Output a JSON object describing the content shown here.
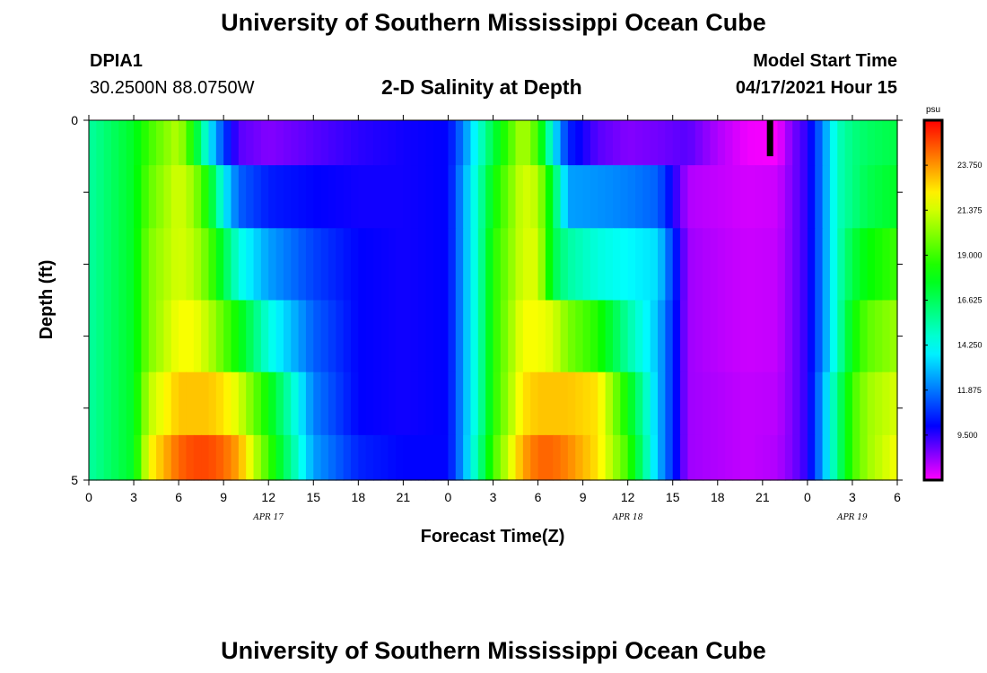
{
  "page": {
    "title_top": "University of Southern Mississippi Ocean Cube",
    "title_bottom": "University of Southern Mississippi Ocean Cube",
    "station_id": "DPIA1",
    "station_coords": "30.2500N  88.0750W",
    "subtitle": "2-D Salinity at Depth",
    "model_start_label": "Model Start Time",
    "model_start_value": "04/17/2021 Hour 15"
  },
  "chart_data": {
    "type": "heatmap",
    "title": "2-D Salinity at Depth",
    "xlabel": "Forecast Time(Z)",
    "ylabel": "Depth (ft)",
    "x_tick_labels": [
      "0",
      "3",
      "6",
      "9",
      "12",
      "15",
      "18",
      "21",
      "0",
      "3",
      "6",
      "9",
      "12",
      "15",
      "18",
      "21",
      "0",
      "3",
      "6"
    ],
    "date_labels": [
      {
        "text": "APR  17",
        "at_hour": 12
      },
      {
        "text": "APR  18",
        "at_hour": 36
      },
      {
        "text": "APR  19",
        "at_hour": 51
      }
    ],
    "xlim_hours": [
      0,
      54
    ],
    "y_tick_labels": [
      {
        "value": 0,
        "text": "0"
      },
      {
        "value": 5,
        "text": "5"
      }
    ],
    "ylim": [
      0,
      5
    ],
    "depth_bands": [
      0.25,
      1.0,
      2.0,
      3.0,
      4.0,
      4.75
    ],
    "now_marker_hour": 45.5,
    "colorbar": {
      "unit": "psu",
      "min": 7.125,
      "max": 26.125,
      "tick_values": [
        23.75,
        21.375,
        19.0,
        16.625,
        14.25,
        11.875,
        9.5
      ],
      "tick_labels": [
        "23.750",
        "21.375",
        "19.000",
        "16.625",
        "14.250",
        "11.875",
        "9.500"
      ]
    },
    "series": [
      {
        "depth_ft": 0.25,
        "hours": [
          0,
          3,
          4,
          6,
          7,
          8,
          9,
          10,
          12,
          15,
          18,
          21,
          24,
          25,
          26,
          27,
          29,
          30,
          31,
          32,
          34,
          36,
          38,
          40,
          42,
          44,
          46,
          47,
          48,
          49,
          50,
          51,
          52,
          54
        ],
        "values": [
          15.5,
          17.5,
          19,
          21,
          18,
          14,
          11,
          9,
          8.5,
          9,
          9.5,
          9.8,
          10,
          12,
          14.5,
          17,
          21,
          19,
          14,
          10.5,
          9,
          8.5,
          8.7,
          9,
          8,
          7.3,
          7.2,
          8.6,
          9.5,
          12,
          15,
          16,
          16.5,
          17
        ]
      },
      {
        "depth_ft": 1.0,
        "hours": [
          0,
          3,
          4,
          6,
          7,
          8,
          9,
          10,
          12,
          15,
          18,
          21,
          24,
          25,
          26,
          27,
          29,
          30,
          31,
          32,
          34,
          36,
          38,
          40,
          42,
          44,
          46,
          47,
          48,
          49,
          50,
          51,
          52,
          54
        ],
        "values": [
          15.5,
          17.5,
          19.5,
          21.5,
          20.5,
          18,
          14,
          11.5,
          10.4,
          10,
          9.8,
          9.8,
          10,
          12.5,
          15,
          18,
          21.5,
          21,
          17,
          12.5,
          12.3,
          12,
          11.5,
          8,
          7.8,
          7.6,
          7.7,
          8.6,
          9.5,
          12,
          15,
          16,
          16.8,
          17.5
        ]
      },
      {
        "depth_ft": 2.0,
        "hours": [
          0,
          3,
          4,
          6,
          7,
          8,
          9,
          10,
          12,
          15,
          18,
          21,
          24,
          25,
          26,
          27,
          29,
          30,
          31,
          32,
          34,
          36,
          38,
          40,
          42,
          44,
          46,
          47,
          48,
          49,
          50,
          51,
          52,
          54
        ],
        "values": [
          15.5,
          17.5,
          20,
          21.5,
          21,
          19.5,
          17,
          14.5,
          12.5,
          11,
          10,
          9.8,
          10,
          12.5,
          15,
          18.5,
          21.5,
          21.5,
          17,
          15.5,
          14.5,
          14,
          13.5,
          8.2,
          7.9,
          7.7,
          7.8,
          8.6,
          9.5,
          12,
          15,
          17,
          18,
          19
        ]
      },
      {
        "depth_ft": 3.0,
        "hours": [
          0,
          3,
          4,
          6,
          7,
          8,
          9,
          10,
          12,
          15,
          18,
          21,
          24,
          25,
          26,
          27,
          29,
          30,
          31,
          32,
          34,
          36,
          38,
          40,
          42,
          44,
          46,
          47,
          48,
          49,
          50,
          51,
          52,
          54
        ],
        "values": [
          15.5,
          17.5,
          20,
          22,
          22,
          21,
          19.5,
          18,
          14.5,
          11.5,
          10,
          9.8,
          10,
          12.5,
          15,
          18.5,
          22,
          22,
          21.5,
          20,
          18.5,
          15.5,
          13,
          8.2,
          7.9,
          7.7,
          7.8,
          8.6,
          9.5,
          12,
          15,
          18,
          19.5,
          20.5
        ]
      },
      {
        "depth_ft": 4.0,
        "hours": [
          0,
          3,
          4,
          6,
          7,
          8,
          9,
          10,
          12,
          15,
          18,
          21,
          24,
          25,
          26,
          27,
          29,
          30,
          31,
          32,
          34,
          36,
          38,
          40,
          42,
          44,
          46,
          47,
          48,
          49,
          50,
          51,
          52,
          54
        ],
        "values": [
          15.5,
          17.5,
          21,
          23,
          23,
          23,
          22.5,
          21.5,
          18,
          12,
          10,
          9.8,
          10,
          12.5,
          15,
          18.5,
          22.5,
          23,
          23,
          23,
          22.5,
          18,
          13,
          8.2,
          8,
          7.8,
          7.9,
          8.6,
          9.5,
          12.5,
          16,
          19,
          20.5,
          21.5
        ]
      },
      {
        "depth_ft": 4.75,
        "hours": [
          0,
          3,
          4,
          6,
          7,
          8,
          9,
          10,
          12,
          15,
          18,
          21,
          24,
          25,
          26,
          27,
          29,
          30,
          31,
          32,
          34,
          36,
          38,
          40,
          42,
          44,
          46,
          47,
          48,
          49,
          50,
          51,
          52,
          54
        ],
        "values": [
          15.5,
          17.5,
          22,
          24.5,
          25,
          25,
          24.5,
          23.5,
          19,
          12.5,
          10.5,
          10,
          10,
          12.5,
          15.5,
          19,
          23.5,
          24.5,
          24.5,
          24,
          22.5,
          19,
          13,
          8.2,
          8,
          7.8,
          8,
          8.6,
          9.5,
          12.5,
          16,
          19,
          20.5,
          22
        ]
      }
    ]
  }
}
